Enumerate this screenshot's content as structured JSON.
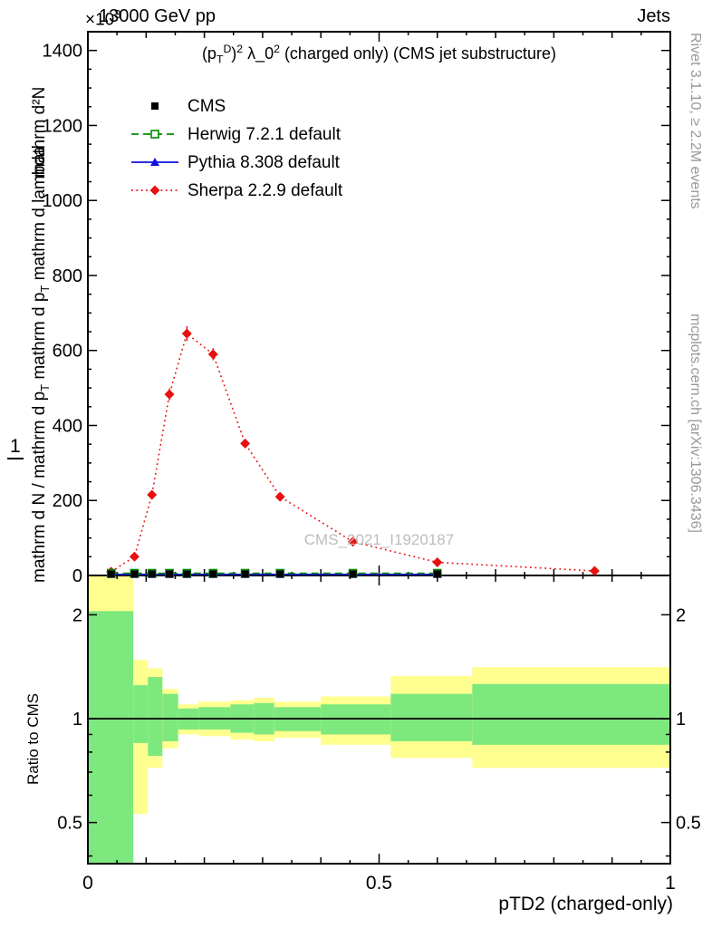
{
  "header": {
    "left": "13000 GeV pp",
    "right": "Jets"
  },
  "y_scale": {
    "base": "×10",
    "exp": "3"
  },
  "plot_title": {
    "p1": "(p",
    "p1_sub": "T",
    "p1_sup": "D",
    "p2": ")",
    "p2_sup": "2",
    "p3": " λ_0",
    "p3_sup": "2",
    "p4": " (charged only) (CMS jet substructure)"
  },
  "watermark": "CMS_2021_I1920187",
  "side_notes": {
    "top_right": "Rivet 3.1.10, ≥ 2.2M events",
    "bottom_right": "mcplots.cern.ch [arXiv:1306.3436]"
  },
  "y_axis_label": {
    "frac_numerator": "1",
    "upper": "mathrm d²N",
    "lower_a": "mathrm d N / mathrm d p",
    "lower_a_sub": "T",
    "lower_b": " mathrm d p",
    "lower_b_sub": "T",
    "lower_c": " mathrm d lambda"
  },
  "x_axis": {
    "title": "pTD2 (charged-only)",
    "tick_labels": [
      "0",
      "0.5",
      "1"
    ],
    "tick_values": [
      0,
      0.5,
      1
    ]
  },
  "colors": {
    "band_yellow": "#ffff8f",
    "band_green": "#7de87d",
    "frame": "#000000",
    "gray_text": "#989898",
    "watermark": "#bdbdbd"
  },
  "chart_data": {
    "type": "line",
    "title": "(p_T^D)^2 λ_0^2 (charged only) (CMS jet substructure)",
    "xlabel": "pTD2 (charged-only)",
    "ylabel": "1/N d²N/(dp_T dλ)",
    "y_units": "×10^3",
    "xlim": [
      0,
      1
    ],
    "ylim": [
      0,
      1450
    ],
    "y_ticks": [
      0,
      200,
      400,
      600,
      800,
      1000,
      1200,
      1400
    ],
    "y_minor_step": 50,
    "x_minor_step": 0.05,
    "legend_position": "top-left",
    "series": [
      {
        "name": "CMS",
        "color": "#000000",
        "marker": "square",
        "line": "none",
        "x": [
          0.04,
          0.08,
          0.11,
          0.14,
          0.17,
          0.215,
          0.27,
          0.33,
          0.455,
          0.6
        ],
        "y": [
          4,
          4,
          4,
          4,
          4,
          4,
          4,
          4,
          4,
          4
        ]
      },
      {
        "name": "Herwig 7.2.1 default",
        "color": "#008c00",
        "marker": "open-square",
        "line": "dashed",
        "x": [
          0.04,
          0.08,
          0.11,
          0.14,
          0.17,
          0.215,
          0.27,
          0.33,
          0.455,
          0.6
        ],
        "y": [
          6,
          6,
          6,
          6,
          6,
          6,
          6,
          6,
          6,
          6
        ]
      },
      {
        "name": "Pythia 8.308 default",
        "color": "#1010e0",
        "marker": "triangle",
        "line": "solid",
        "x": [
          0.04,
          0.08,
          0.11,
          0.14,
          0.17,
          0.215,
          0.27,
          0.33,
          0.455,
          0.6
        ],
        "y": [
          3,
          3,
          3,
          3,
          3,
          3,
          3,
          3,
          3,
          3
        ]
      },
      {
        "name": "Sherpa 2.2.9 default",
        "color": "#e81010",
        "marker": "diamond",
        "line": "dotted",
        "x": [
          0.04,
          0.08,
          0.11,
          0.14,
          0.17,
          0.215,
          0.27,
          0.33,
          0.455,
          0.6,
          0.87
        ],
        "y": [
          10,
          50,
          215,
          483,
          645,
          590,
          352,
          210,
          90,
          35,
          12
        ],
        "yerr": [
          4,
          8,
          12,
          16,
          20,
          16,
          11,
          8,
          6,
          4,
          3
        ]
      }
    ],
    "ratio_panel": {
      "ylabel": "Ratio to CMS",
      "scale": "log",
      "ylim": [
        0.38,
        2.6
      ],
      "y_tick_labels": [
        "0.5",
        "1",
        "2"
      ],
      "y_tick_values": [
        0.5,
        1,
        2
      ],
      "y_minor_ticks": [
        0.4,
        0.6,
        0.7,
        0.8,
        0.9
      ],
      "reference_line": 1,
      "bands": [
        {
          "x0": 0.0,
          "x1": 0.078,
          "yellow": [
            0.38,
            2.6
          ],
          "green": [
            0.38,
            2.05
          ]
        },
        {
          "x0": 0.078,
          "x1": 0.103,
          "yellow": [
            0.53,
            1.48
          ],
          "green": [
            0.85,
            1.25
          ]
        },
        {
          "x0": 0.103,
          "x1": 0.128,
          "yellow": [
            0.72,
            1.4
          ],
          "green": [
            0.78,
            1.32
          ]
        },
        {
          "x0": 0.128,
          "x1": 0.155,
          "yellow": [
            0.82,
            1.22
          ],
          "green": [
            0.86,
            1.18
          ]
        },
        {
          "x0": 0.155,
          "x1": 0.19,
          "yellow": [
            0.9,
            1.1
          ],
          "green": [
            0.93,
            1.07
          ]
        },
        {
          "x0": 0.19,
          "x1": 0.245,
          "yellow": [
            0.89,
            1.12
          ],
          "green": [
            0.93,
            1.08
          ]
        },
        {
          "x0": 0.245,
          "x1": 0.285,
          "yellow": [
            0.87,
            1.13
          ],
          "green": [
            0.91,
            1.1
          ]
        },
        {
          "x0": 0.285,
          "x1": 0.32,
          "yellow": [
            0.86,
            1.15
          ],
          "green": [
            0.9,
            1.11
          ]
        },
        {
          "x0": 0.32,
          "x1": 0.4,
          "yellow": [
            0.88,
            1.12
          ],
          "green": [
            0.92,
            1.08
          ]
        },
        {
          "x0": 0.4,
          "x1": 0.52,
          "yellow": [
            0.84,
            1.16
          ],
          "green": [
            0.9,
            1.1
          ]
        },
        {
          "x0": 0.52,
          "x1": 0.66,
          "yellow": [
            0.77,
            1.33
          ],
          "green": [
            0.86,
            1.18
          ]
        },
        {
          "x0": 0.66,
          "x1": 1.0,
          "yellow": [
            0.72,
            1.41
          ],
          "green": [
            0.84,
            1.26
          ]
        }
      ]
    }
  }
}
